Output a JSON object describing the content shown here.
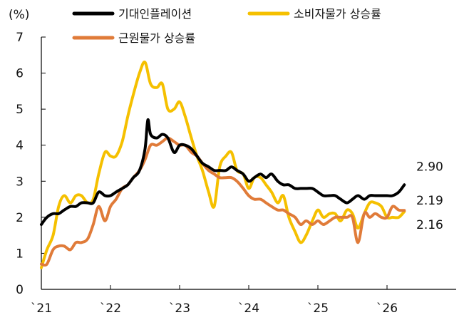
{
  "chart_data": {
    "type": "line",
    "unit_label": "(%)",
    "ylim": [
      0,
      7
    ],
    "yticks": [
      "0",
      "1",
      "2",
      "3",
      "4",
      "5",
      "6",
      "7"
    ],
    "xlim": [
      2021.0,
      2027.0
    ],
    "xticks": [
      {
        "value": 2021,
        "label": "`21"
      },
      {
        "value": 2022,
        "label": "`22"
      },
      {
        "value": 2023,
        "label": "`23"
      },
      {
        "value": 2024,
        "label": "`24"
      },
      {
        "value": 2025,
        "label": "`25"
      },
      {
        "value": 2026,
        "label": "`26"
      }
    ],
    "grid": false,
    "legend_placement": "top",
    "series": [
      {
        "name": "기대인플레이션",
        "color": "#000000",
        "end_label": "2.90",
        "points": [
          [
            2021.0,
            1.8
          ],
          [
            2021.08,
            2.0
          ],
          [
            2021.17,
            2.1
          ],
          [
            2021.25,
            2.1
          ],
          [
            2021.33,
            2.2
          ],
          [
            2021.42,
            2.3
          ],
          [
            2021.5,
            2.3
          ],
          [
            2021.58,
            2.4
          ],
          [
            2021.67,
            2.4
          ],
          [
            2021.75,
            2.4
          ],
          [
            2021.83,
            2.7
          ],
          [
            2021.92,
            2.6
          ],
          [
            2022.0,
            2.6
          ],
          [
            2022.08,
            2.7
          ],
          [
            2022.17,
            2.8
          ],
          [
            2022.25,
            2.9
          ],
          [
            2022.33,
            3.1
          ],
          [
            2022.42,
            3.3
          ],
          [
            2022.5,
            3.9
          ],
          [
            2022.54,
            4.7
          ],
          [
            2022.58,
            4.3
          ],
          [
            2022.67,
            4.2
          ],
          [
            2022.75,
            4.3
          ],
          [
            2022.83,
            4.2
          ],
          [
            2022.92,
            3.8
          ],
          [
            2023.0,
            4.0
          ],
          [
            2023.08,
            4.0
          ],
          [
            2023.17,
            3.9
          ],
          [
            2023.25,
            3.7
          ],
          [
            2023.33,
            3.5
          ],
          [
            2023.42,
            3.4
          ],
          [
            2023.5,
            3.3
          ],
          [
            2023.58,
            3.3
          ],
          [
            2023.67,
            3.3
          ],
          [
            2023.75,
            3.4
          ],
          [
            2023.83,
            3.3
          ],
          [
            2023.92,
            3.2
          ],
          [
            2024.0,
            3.0
          ],
          [
            2024.08,
            3.1
          ],
          [
            2024.17,
            3.2
          ],
          [
            2024.25,
            3.1
          ],
          [
            2024.33,
            3.2
          ],
          [
            2024.42,
            3.0
          ],
          [
            2024.5,
            2.9
          ],
          [
            2024.58,
            2.9
          ],
          [
            2024.67,
            2.8
          ],
          [
            2024.75,
            2.8
          ],
          [
            2024.83,
            2.8
          ],
          [
            2024.92,
            2.8
          ],
          [
            2025.0,
            2.7
          ],
          [
            2025.08,
            2.6
          ],
          [
            2025.17,
            2.6
          ],
          [
            2025.25,
            2.6
          ],
          [
            2025.33,
            2.5
          ],
          [
            2025.42,
            2.4
          ],
          [
            2025.5,
            2.5
          ],
          [
            2025.58,
            2.6
          ],
          [
            2025.67,
            2.5
          ],
          [
            2025.75,
            2.6
          ],
          [
            2025.83,
            2.6
          ],
          [
            2025.92,
            2.6
          ],
          [
            2026.0,
            2.6
          ],
          [
            2026.08,
            2.6
          ],
          [
            2026.17,
            2.7
          ],
          [
            2026.25,
            2.9
          ]
        ]
      },
      {
        "name": "소비자물가 상승률",
        "color": "#F5C000",
        "end_label": "2.16",
        "points": [
          [
            2021.0,
            0.6
          ],
          [
            2021.08,
            1.1
          ],
          [
            2021.17,
            1.5
          ],
          [
            2021.25,
            2.3
          ],
          [
            2021.33,
            2.6
          ],
          [
            2021.42,
            2.4
          ],
          [
            2021.5,
            2.6
          ],
          [
            2021.58,
            2.6
          ],
          [
            2021.67,
            2.4
          ],
          [
            2021.75,
            2.5
          ],
          [
            2021.83,
            3.2
          ],
          [
            2021.92,
            3.8
          ],
          [
            2022.0,
            3.7
          ],
          [
            2022.08,
            3.7
          ],
          [
            2022.17,
            4.1
          ],
          [
            2022.25,
            4.8
          ],
          [
            2022.33,
            5.4
          ],
          [
            2022.42,
            6.0
          ],
          [
            2022.5,
            6.3
          ],
          [
            2022.58,
            5.7
          ],
          [
            2022.67,
            5.6
          ],
          [
            2022.75,
            5.7
          ],
          [
            2022.83,
            5.0
          ],
          [
            2022.92,
            5.0
          ],
          [
            2023.0,
            5.2
          ],
          [
            2023.08,
            4.8
          ],
          [
            2023.17,
            4.2
          ],
          [
            2023.25,
            3.7
          ],
          [
            2023.33,
            3.3
          ],
          [
            2023.42,
            2.7
          ],
          [
            2023.5,
            2.3
          ],
          [
            2023.58,
            3.4
          ],
          [
            2023.67,
            3.7
          ],
          [
            2023.75,
            3.8
          ],
          [
            2023.83,
            3.3
          ],
          [
            2023.92,
            3.2
          ],
          [
            2024.0,
            2.8
          ],
          [
            2024.08,
            3.1
          ],
          [
            2024.17,
            3.1
          ],
          [
            2024.25,
            2.9
          ],
          [
            2024.33,
            2.7
          ],
          [
            2024.42,
            2.4
          ],
          [
            2024.5,
            2.6
          ],
          [
            2024.58,
            2.0
          ],
          [
            2024.67,
            1.6
          ],
          [
            2024.75,
            1.3
          ],
          [
            2024.83,
            1.5
          ],
          [
            2024.92,
            1.9
          ],
          [
            2025.0,
            2.2
          ],
          [
            2025.08,
            2.0
          ],
          [
            2025.17,
            2.1
          ],
          [
            2025.25,
            2.1
          ],
          [
            2025.33,
            1.9
          ],
          [
            2025.42,
            2.2
          ],
          [
            2025.5,
            2.1
          ],
          [
            2025.58,
            1.7
          ],
          [
            2025.67,
            2.1
          ],
          [
            2025.75,
            2.4
          ],
          [
            2025.83,
            2.4
          ],
          [
            2025.92,
            2.3
          ],
          [
            2026.0,
            2.0
          ],
          [
            2026.08,
            2.0
          ],
          [
            2026.17,
            2.0
          ],
          [
            2026.25,
            2.16
          ]
        ]
      },
      {
        "name": "근원물가 상승률",
        "color": "#E07B39",
        "end_label": "2.19",
        "points": [
          [
            2021.0,
            0.7
          ],
          [
            2021.08,
            0.7
          ],
          [
            2021.17,
            1.1
          ],
          [
            2021.25,
            1.2
          ],
          [
            2021.33,
            1.2
          ],
          [
            2021.42,
            1.1
          ],
          [
            2021.5,
            1.3
          ],
          [
            2021.58,
            1.3
          ],
          [
            2021.67,
            1.4
          ],
          [
            2021.75,
            1.8
          ],
          [
            2021.83,
            2.3
          ],
          [
            2021.92,
            1.9
          ],
          [
            2022.0,
            2.3
          ],
          [
            2022.08,
            2.5
          ],
          [
            2022.17,
            2.8
          ],
          [
            2022.25,
            2.9
          ],
          [
            2022.33,
            3.1
          ],
          [
            2022.42,
            3.3
          ],
          [
            2022.5,
            3.6
          ],
          [
            2022.58,
            4.0
          ],
          [
            2022.67,
            4.0
          ],
          [
            2022.75,
            4.1
          ],
          [
            2022.83,
            4.2
          ],
          [
            2022.92,
            4.1
          ],
          [
            2023.0,
            4.0
          ],
          [
            2023.08,
            4.0
          ],
          [
            2023.17,
            3.8
          ],
          [
            2023.25,
            3.7
          ],
          [
            2023.33,
            3.5
          ],
          [
            2023.42,
            3.3
          ],
          [
            2023.5,
            3.2
          ],
          [
            2023.58,
            3.1
          ],
          [
            2023.67,
            3.1
          ],
          [
            2023.75,
            3.1
          ],
          [
            2023.83,
            3.0
          ],
          [
            2023.92,
            2.8
          ],
          [
            2024.0,
            2.6
          ],
          [
            2024.08,
            2.5
          ],
          [
            2024.17,
            2.5
          ],
          [
            2024.25,
            2.4
          ],
          [
            2024.33,
            2.3
          ],
          [
            2024.42,
            2.2
          ],
          [
            2024.5,
            2.2
          ],
          [
            2024.58,
            2.1
          ],
          [
            2024.67,
            2.0
          ],
          [
            2024.75,
            1.8
          ],
          [
            2024.83,
            1.9
          ],
          [
            2024.92,
            1.8
          ],
          [
            2025.0,
            1.9
          ],
          [
            2025.08,
            1.8
          ],
          [
            2025.17,
            1.9
          ],
          [
            2025.25,
            2.0
          ],
          [
            2025.33,
            2.0
          ],
          [
            2025.42,
            2.0
          ],
          [
            2025.5,
            2.0
          ],
          [
            2025.58,
            1.3
          ],
          [
            2025.67,
            2.1
          ],
          [
            2025.75,
            2.0
          ],
          [
            2025.83,
            2.1
          ],
          [
            2025.92,
            2.0
          ],
          [
            2026.0,
            2.0
          ],
          [
            2026.08,
            2.3
          ],
          [
            2026.17,
            2.2
          ],
          [
            2026.25,
            2.19
          ]
        ]
      }
    ]
  }
}
